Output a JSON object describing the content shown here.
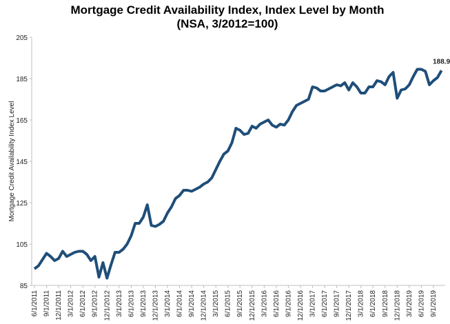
{
  "chart_data": {
    "type": "line",
    "title": "Mortgage Credit Availability Index, Index Level by Month",
    "subtitle": "(NSA, 3/2012=100)",
    "y_label": "Mortgage Credit Availability Index Level",
    "categories": [
      "6/1/2011",
      null,
      null,
      "9/1/2011",
      null,
      null,
      "12/1/2011",
      null,
      null,
      "3/1/2012",
      null,
      null,
      "6/1/2012",
      null,
      null,
      "9/1/2012",
      null,
      null,
      "12/1/2012",
      null,
      null,
      "3/1/2013",
      null,
      null,
      "6/1/2013",
      null,
      null,
      "9/1/2013",
      null,
      null,
      "12/1/2013",
      null,
      null,
      "3/1/2014",
      null,
      null,
      "6/1/2014",
      null,
      null,
      "9/1/2014",
      null,
      null,
      "12/1/2014",
      null,
      null,
      "3/1/2015",
      null,
      null,
      "6/1/2015",
      null,
      null,
      "9/1/2015",
      null,
      null,
      "12/1/2015",
      null,
      null,
      "3/1/2016",
      null,
      null,
      "6/1/2016",
      null,
      null,
      "9/1/2016",
      null,
      null,
      "12/1/2016",
      null,
      null,
      "3/1/2017",
      null,
      null,
      "6/1/2017",
      null,
      null,
      "9/1/2017",
      null,
      null,
      "12/1/2017",
      null,
      null,
      "3/1/2018",
      null,
      null,
      "6/1/2018",
      null,
      null,
      "9/1/2018",
      null,
      null,
      "12/1/2018",
      null,
      null,
      "3/1/2019",
      null,
      null,
      "6/1/2019",
      null,
      null,
      "9/1/2019",
      null,
      null
    ],
    "series": [
      {
        "color": "#1f4e79",
        "values": [
          93,
          94.5,
          97.5,
          100.5,
          99,
          97,
          98,
          101.5,
          99,
          100,
          101,
          101.5,
          101.5,
          100,
          97,
          99,
          89,
          96,
          88.5,
          95,
          101,
          101,
          102.5,
          105,
          109,
          115,
          115,
          118,
          124,
          114,
          113.5,
          114.5,
          116,
          120,
          123,
          127,
          128.5,
          131,
          131,
          130.5,
          131.5,
          132.5,
          134,
          135,
          137,
          141,
          145,
          148.5,
          150,
          154,
          161,
          160,
          158,
          158.5,
          162,
          161,
          163,
          164,
          165,
          162.5,
          161.5,
          163,
          162.5,
          165,
          169,
          172,
          173,
          174,
          175,
          181,
          180.5,
          179,
          179,
          180,
          181,
          182,
          181.5,
          183,
          179.5,
          183,
          181,
          178,
          178,
          181,
          181,
          184,
          183.5,
          182,
          186,
          188,
          175.5,
          179.5,
          180,
          182,
          186,
          189.5,
          189.5,
          188.5,
          182,
          184,
          185.5,
          188.9
        ]
      }
    ],
    "ylim": [
      85,
      205
    ],
    "yticks": [
      85,
      105,
      125,
      145,
      165,
      185,
      205
    ]
  }
}
